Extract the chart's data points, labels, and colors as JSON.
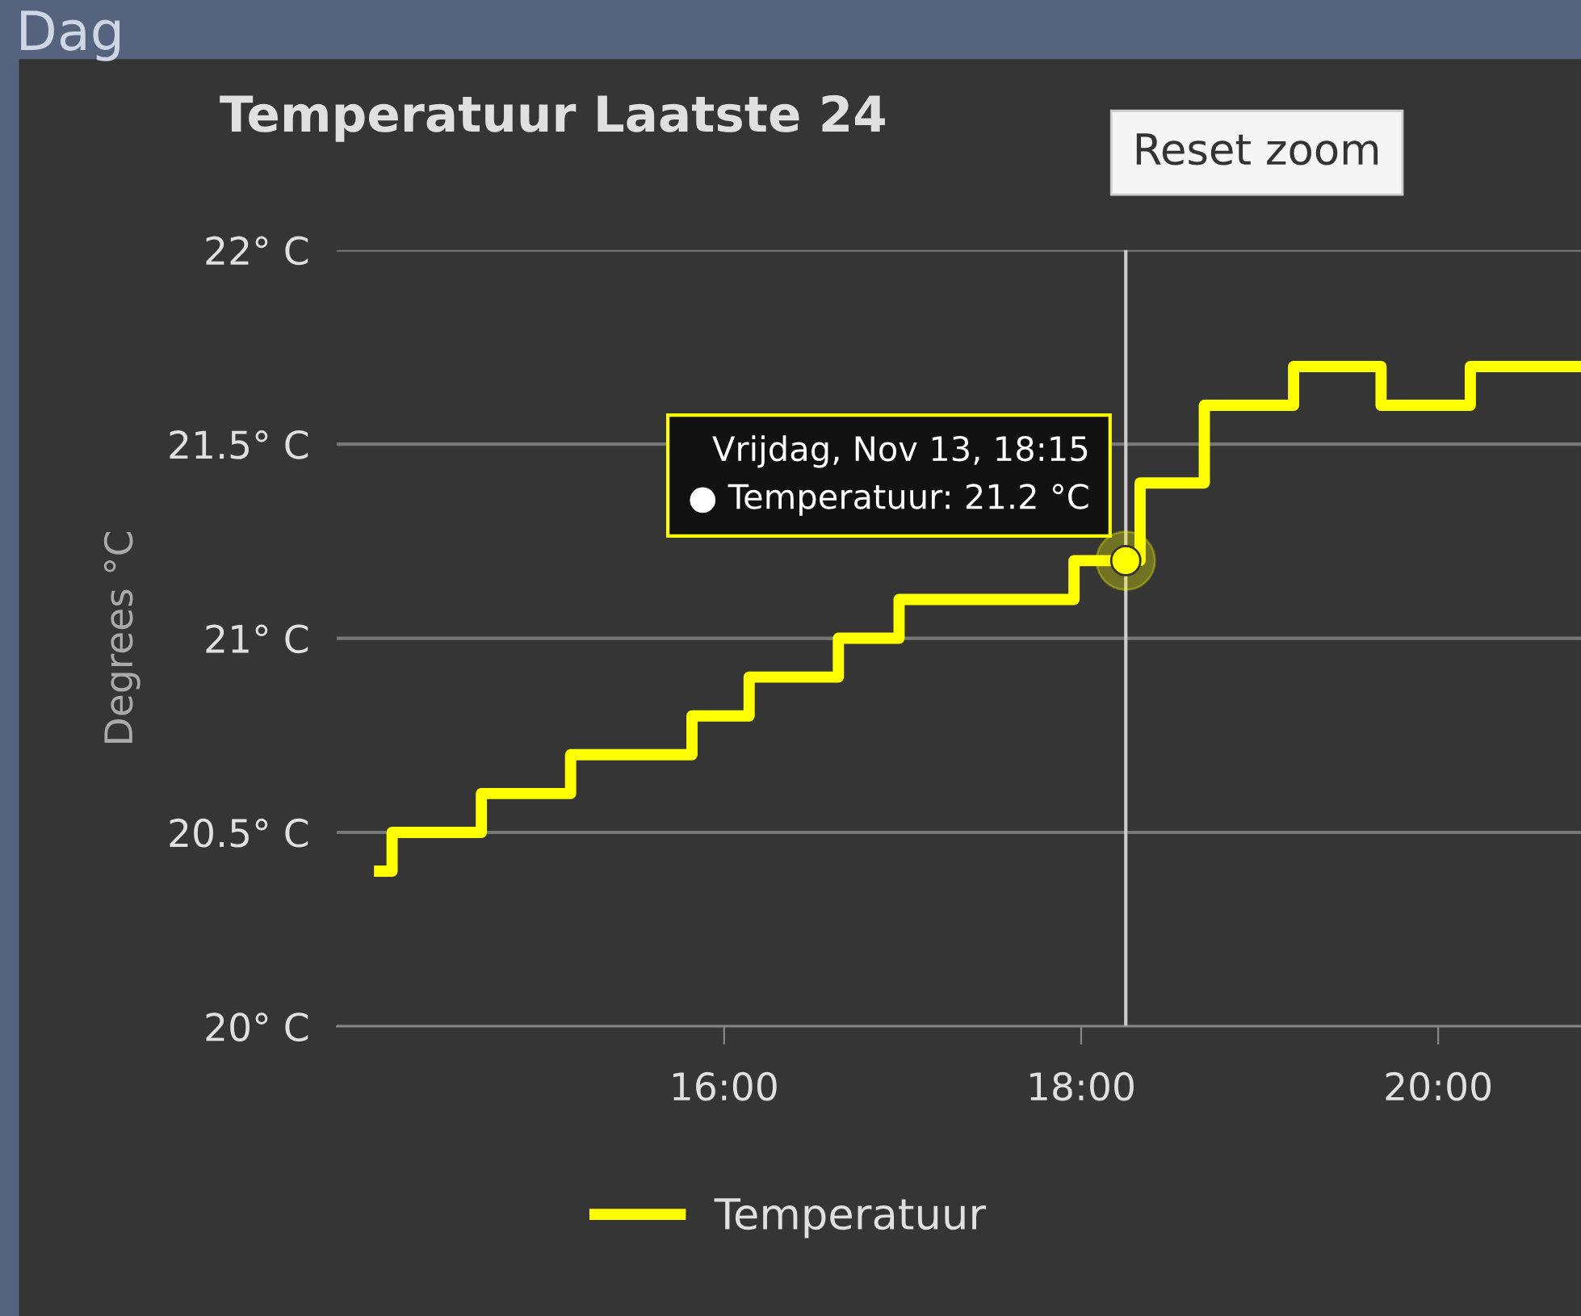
{
  "chart_data": {
    "type": "step",
    "title": "Temperatuur Laatste 24",
    "ylabel": "Degrees °C",
    "x": [
      14.07,
      14.14,
      14.64,
      15.14,
      15.82,
      16.14,
      16.64,
      16.98,
      17.96,
      18.33,
      18.69,
      19.19,
      19.68,
      20.18,
      20.8
    ],
    "series": [
      {
        "name": "Temperatuur",
        "color": "#ffff00",
        "values": [
          20.4,
          20.5,
          20.6,
          20.7,
          20.8,
          20.9,
          21.0,
          21.1,
          21.2,
          21.4,
          21.6,
          21.7,
          21.6,
          21.7,
          21.7
        ]
      }
    ],
    "xlim": [
      13.83,
      20.8
    ],
    "ylim": [
      20,
      22
    ],
    "xticks": [
      {
        "value": 16,
        "label": "16:00"
      },
      {
        "value": 18,
        "label": "18:00"
      },
      {
        "value": 20,
        "label": "20:00"
      }
    ],
    "yticks": [
      {
        "value": 20,
        "label": "20° C"
      },
      {
        "value": 20.5,
        "label": "20.5° C"
      },
      {
        "value": 21,
        "label": "21° C"
      },
      {
        "value": 21.5,
        "label": "21.5° C"
      },
      {
        "value": 22,
        "label": "22° C"
      }
    ],
    "ref_lines": [
      {
        "axis": "x",
        "value": 18.25,
        "label": null,
        "color": "#cccccc"
      }
    ],
    "annotations": [
      "Dag",
      "Reset zoom",
      {
        "text": "Vrijdag, Nov 13, 18:15\n● Temperatuur: 21.2 °C",
        "x": 18.25,
        "y": 21.2
      }
    ],
    "grid": "y",
    "legend": "bottom",
    "line_style": "solid",
    "marker": "none"
  }
}
